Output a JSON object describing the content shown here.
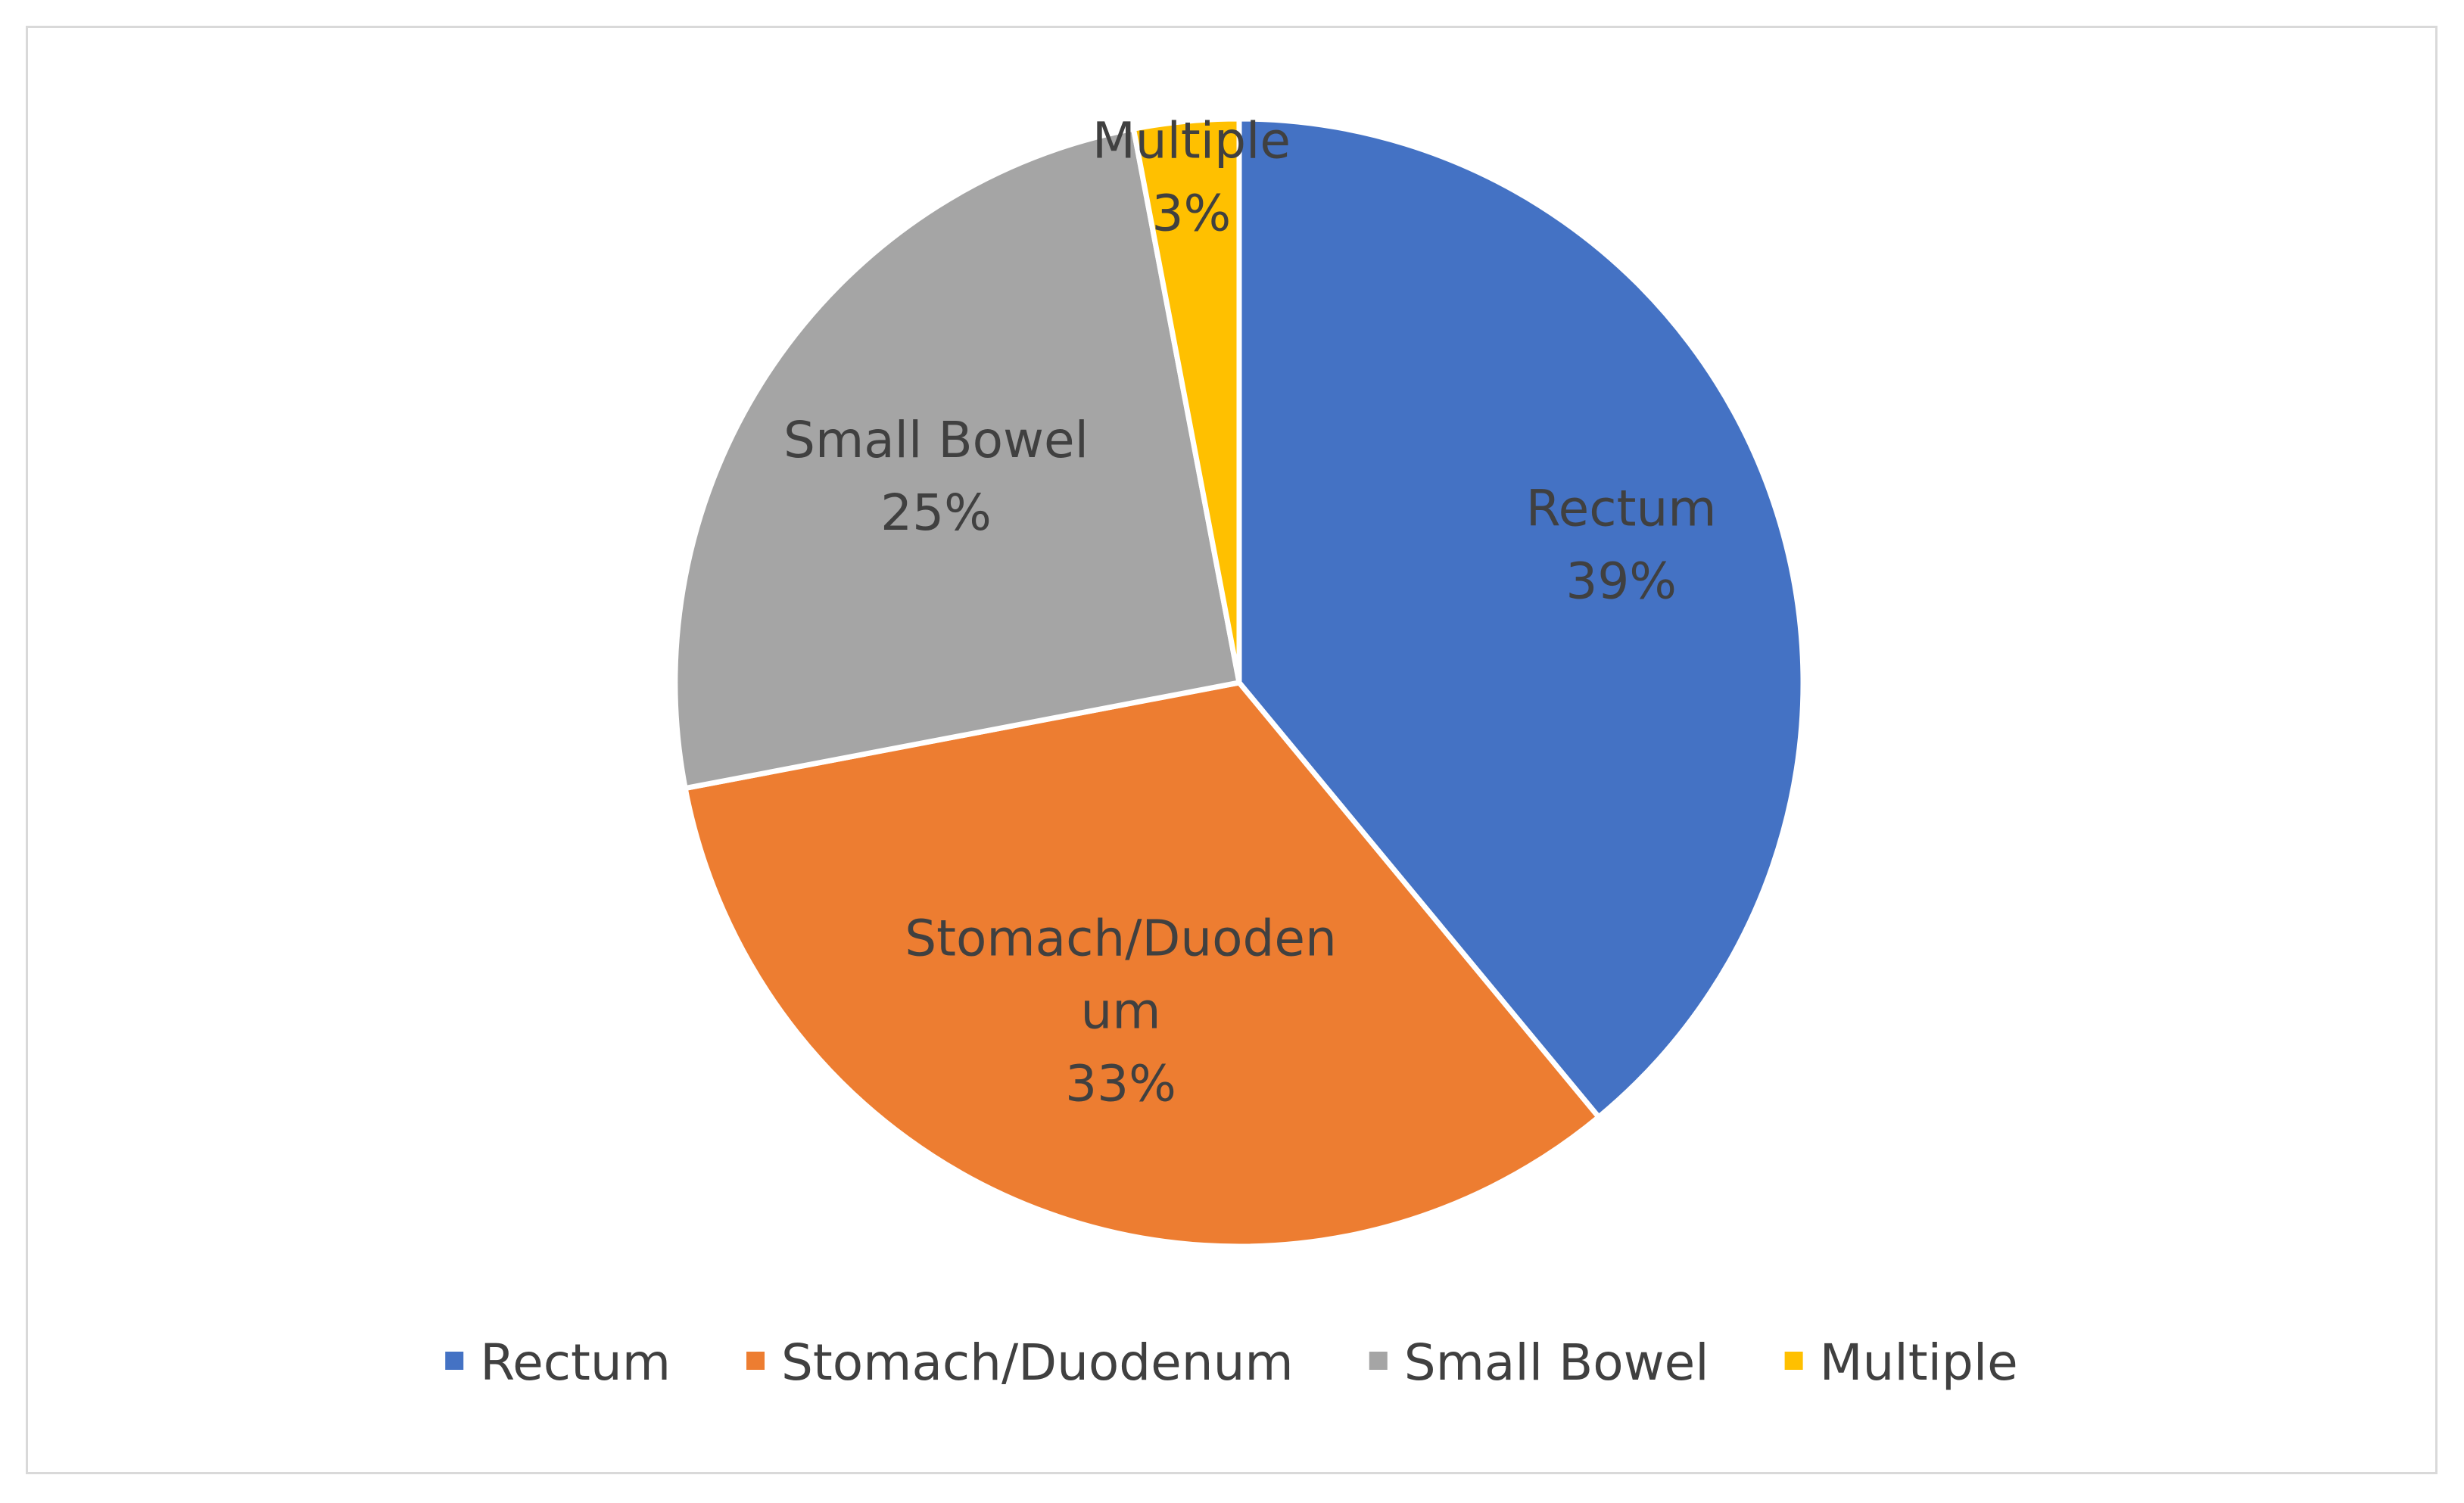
{
  "chart_data": {
    "type": "pie",
    "title": "",
    "slices": [
      {
        "name": "Rectum",
        "value": 39,
        "percent_label": "39%",
        "color": "#4472c4",
        "label_lines": [
          "Rectum",
          "39%"
        ]
      },
      {
        "name": "Stomach/Duodenum",
        "value": 33,
        "percent_label": "33%",
        "color": "#ed7d31",
        "label_lines": [
          "Stomach/Duoden",
          "um",
          "33%"
        ]
      },
      {
        "name": "Small Bowel",
        "value": 25,
        "percent_label": "25%",
        "color": "#a5a5a5",
        "label_lines": [
          "Small Bowel",
          "25%"
        ]
      },
      {
        "name": "Multiple",
        "value": 3,
        "percent_label": "3%",
        "color": "#ffc000",
        "label_lines": [
          "Multiple",
          "3%"
        ]
      }
    ],
    "legend_position": "bottom",
    "legend": [
      "Rectum",
      "Stomach/Duodenum",
      "Small Bowel",
      "Multiple"
    ]
  }
}
